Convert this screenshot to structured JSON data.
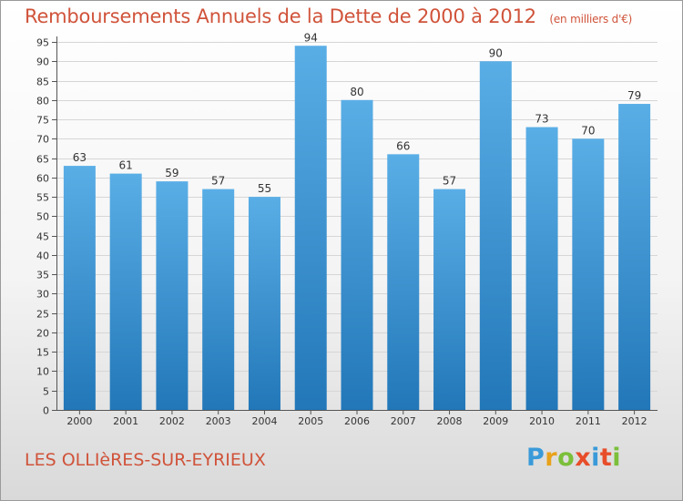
{
  "header": {
    "title": "Remboursements Annuels de la Dette de 2000 à 2012",
    "subtitle": "(en milliers d'€)"
  },
  "footer": {
    "place": "LES OLLIèRES-SUR-EYRIEUX",
    "logo": "Proxiti"
  },
  "colors": {
    "bar_top": "#5aaee6",
    "bar_bottom": "#2277b8",
    "title": "#d0533a"
  },
  "chart_data": {
    "type": "bar",
    "categories": [
      "2000",
      "2001",
      "2002",
      "2003",
      "2004",
      "2005",
      "2006",
      "2007",
      "2008",
      "2009",
      "2010",
      "2011",
      "2012"
    ],
    "values": [
      63,
      61,
      59,
      57,
      55,
      94,
      80,
      66,
      57,
      90,
      73,
      70,
      79
    ],
    "title": "Remboursements Annuels de la Dette de 2000 à 2012",
    "xlabel": "",
    "ylabel": "",
    "ylim": [
      0,
      95
    ],
    "ytick_step": 5,
    "grid": true,
    "data_labels": true
  }
}
